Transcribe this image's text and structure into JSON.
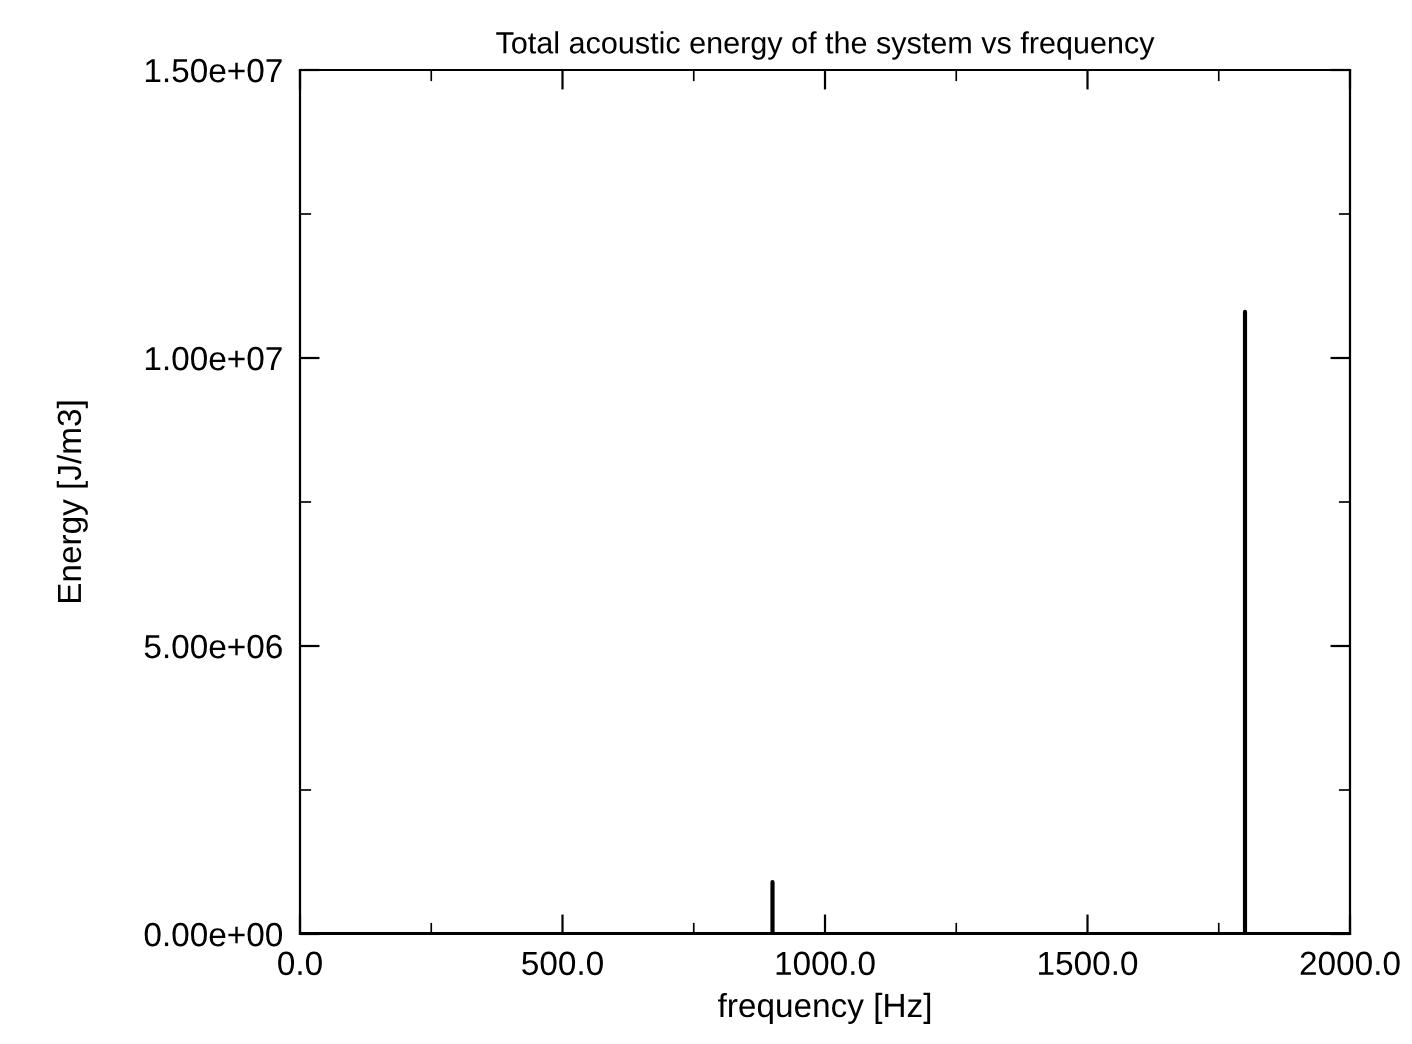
{
  "chart_data": {
    "type": "line",
    "title": "Total acoustic energy of the system vs frequency",
    "xlabel": "frequency [Hz]",
    "ylabel": "Energy [J/m3]",
    "x": [
      0,
      900,
      900,
      900,
      1800,
      1800,
      1800,
      2000
    ],
    "series": [
      {
        "color": "#000000",
        "values": [
          0,
          0,
          900000,
          0,
          0,
          10800000,
          0,
          0
        ]
      }
    ],
    "xlim": [
      0,
      2000
    ],
    "xticks": [
      {
        "value": 0,
        "label": "0.0"
      },
      {
        "value": 500,
        "label": "500.0"
      },
      {
        "value": 1000,
        "label": "1000.0"
      },
      {
        "value": 1500,
        "label": "1500.0"
      },
      {
        "value": 2000,
        "label": "2000.0"
      }
    ],
    "ylim": [
      0,
      15000000
    ],
    "yticks": [
      {
        "value": 0,
        "label": "0.00e+00"
      },
      {
        "value": 5000000,
        "label": "5.00e+06"
      },
      {
        "value": 10000000,
        "label": "1.00e+07"
      },
      {
        "value": 15000000,
        "label": "1.50e+07"
      }
    ],
    "grid": false,
    "legend": false,
    "marker": "none",
    "line_style": "solid"
  }
}
